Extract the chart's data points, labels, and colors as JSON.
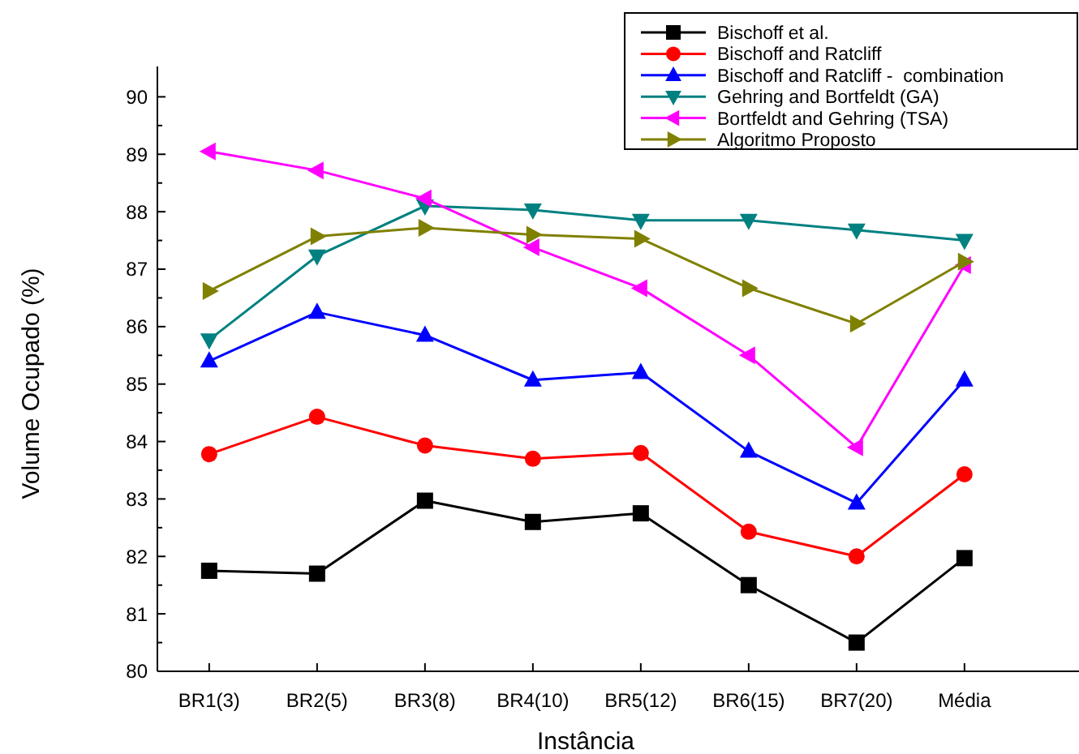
{
  "chart_data": {
    "type": "line",
    "xlabel": "Instância",
    "ylabel": "Volume Ocupado (%)",
    "categories": [
      "BR1(3)",
      "BR2(5)",
      "BR3(8)",
      "BR4(10)",
      "BR5(12)",
      "BR6(15)",
      "BR7(20)",
      "Média"
    ],
    "ylim": [
      80,
      90.5
    ],
    "yticks": [
      80,
      81,
      82,
      83,
      84,
      85,
      86,
      87,
      88,
      89,
      90
    ],
    "grid": false,
    "legend": "top right",
    "line_style": "solid",
    "series": [
      {
        "name": "Bischoff et al.",
        "color": "#000000",
        "marker": "square",
        "values": [
          81.75,
          81.7,
          82.97,
          82.6,
          82.75,
          81.5,
          80.5,
          81.97
        ]
      },
      {
        "name": "Bischoff and Ratcliff",
        "color": "#ff0000",
        "marker": "circle",
        "values": [
          83.78,
          84.43,
          83.93,
          83.7,
          83.8,
          82.43,
          82.0,
          83.43
        ]
      },
      {
        "name": "Bischoff and Ratcliff -  combination",
        "color": "#0000ff",
        "marker": "triangle",
        "values": [
          85.4,
          86.25,
          85.85,
          85.07,
          85.2,
          83.83,
          82.93,
          85.07
        ]
      },
      {
        "name": "Gehring and Bortfeldt (GA)",
        "color": "#008080",
        "marker": "triangle-down",
        "values": [
          85.77,
          87.23,
          88.1,
          88.03,
          87.85,
          87.85,
          87.68,
          87.5
        ]
      },
      {
        "name": "Bortfeldt and Gehring (TSA)",
        "color": "#ff00ff",
        "marker": "triangle-left",
        "values": [
          89.05,
          88.72,
          88.23,
          87.38,
          86.67,
          85.5,
          83.9,
          87.07
        ]
      },
      {
        "name": "Algoritmo Proposto",
        "color": "#808000",
        "marker": "triangle-right",
        "values": [
          86.62,
          87.57,
          87.72,
          87.6,
          87.53,
          86.67,
          86.05,
          87.13
        ]
      }
    ]
  }
}
